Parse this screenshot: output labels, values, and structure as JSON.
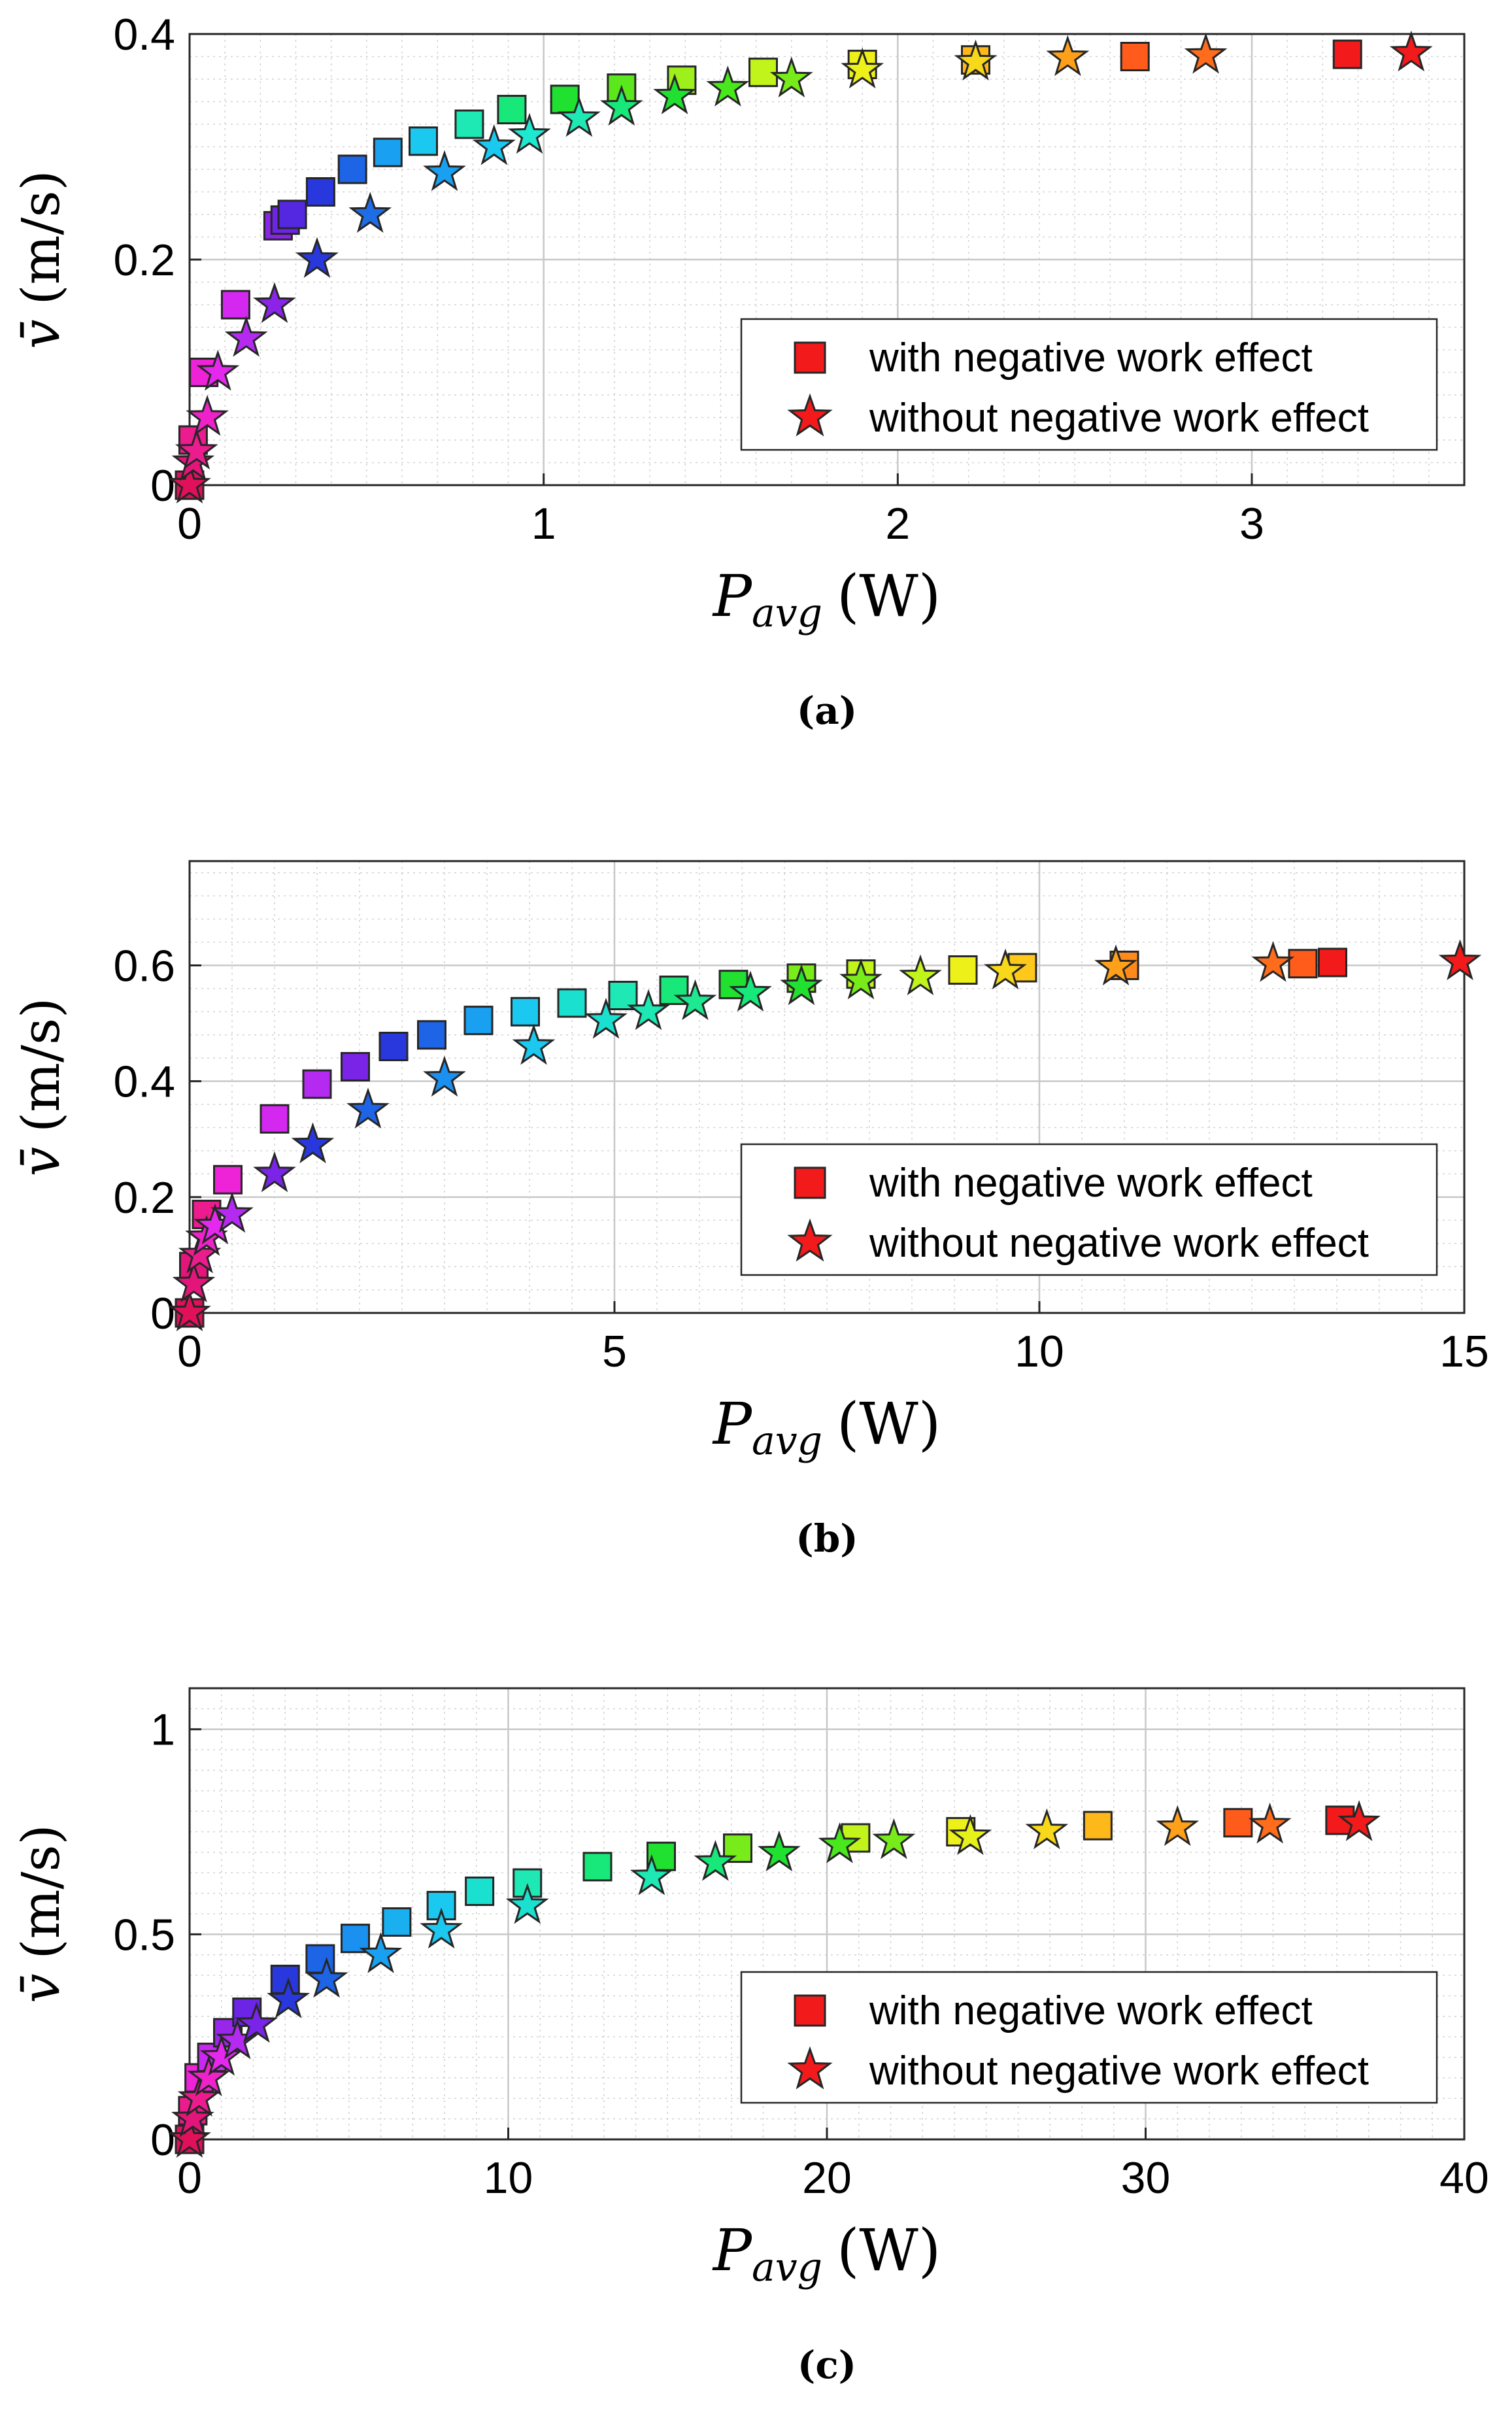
{
  "chart_data": [
    {
      "type": "scatter",
      "panel_label": "(a)",
      "xlabel_main": "P",
      "xlabel_sub": "avg",
      "xlabel_unit": "(W)",
      "ylabel_symbol": "v̄",
      "ylabel_unit": "(m/s)",
      "xlim": [
        0,
        3.6
      ],
      "ylim": [
        0,
        0.4
      ],
      "xticks": [
        0,
        1,
        2,
        3
      ],
      "xtick_labels": [
        "0",
        "1",
        "2",
        "3"
      ],
      "yticks": [
        0,
        0.2,
        0.4
      ],
      "ytick_labels": [
        "0",
        "0.2",
        "0.4"
      ],
      "minor_x": 0.1,
      "minor_y": 0.02,
      "grid": true,
      "legend": {
        "position": "center-right",
        "entries": [
          "with negative work effect",
          "without negative work effect"
        ]
      },
      "series": [
        {
          "name": "with negative work effect",
          "marker": "square",
          "x": [
            0.0,
            0.01,
            0.04,
            0.13,
            0.25,
            0.27,
            0.29,
            0.37,
            0.46,
            0.56,
            0.66,
            0.79,
            0.91,
            1.06,
            1.22,
            1.39,
            1.62,
            1.9,
            2.22,
            2.67,
            3.27
          ],
          "y": [
            0.0,
            0.04,
            0.1,
            0.16,
            0.23,
            0.235,
            0.24,
            0.26,
            0.28,
            0.295,
            0.305,
            0.32,
            0.333,
            0.342,
            0.352,
            0.359,
            0.366,
            0.373,
            0.377,
            0.38,
            0.382
          ],
          "colors": [
            "#e0105a",
            "#ec1c8e",
            "#ee22d6",
            "#d428f0",
            "#8a24e8",
            "#6c24e6",
            "#5428e0",
            "#2838dc",
            "#1e64e6",
            "#1aa0f0",
            "#1ac8f0",
            "#1ee8b4",
            "#18e87a",
            "#20e030",
            "#5ae81c",
            "#9ef01a",
            "#c0f41a",
            "#eef01a",
            "#ffb81a",
            "#ff5c1c",
            "#f21a1a"
          ]
        },
        {
          "name": "without negative work effect",
          "marker": "star",
          "x": [
            0.0,
            0.01,
            0.02,
            0.05,
            0.08,
            0.16,
            0.24,
            0.36,
            0.51,
            0.72,
            0.86,
            0.96,
            1.1,
            1.22,
            1.37,
            1.52,
            1.7,
            1.9,
            2.22,
            2.48,
            2.87,
            3.45
          ],
          "y": [
            0.0,
            0.02,
            0.03,
            0.06,
            0.1,
            0.13,
            0.16,
            0.2,
            0.24,
            0.277,
            0.3,
            0.31,
            0.325,
            0.335,
            0.345,
            0.352,
            0.36,
            0.368,
            0.375,
            0.379,
            0.381,
            0.383
          ],
          "colors": [
            "#e0105a",
            "#e4157a",
            "#ec1c8e",
            "#ee22c8",
            "#e428ee",
            "#b42af0",
            "#8a24e8",
            "#2838dc",
            "#1e6ce6",
            "#1aa0f0",
            "#1ac8f0",
            "#1ee8d0",
            "#1ee8b4",
            "#18e87a",
            "#20e030",
            "#48e81c",
            "#78ec1a",
            "#eef01a",
            "#f8d81a",
            "#ffa01a",
            "#ff6c1c",
            "#f21a1a"
          ]
        }
      ]
    },
    {
      "type": "scatter",
      "panel_label": "(b)",
      "xlabel_main": "P",
      "xlabel_sub": "avg",
      "xlabel_unit": "(W)",
      "ylabel_symbol": "v̄",
      "ylabel_unit": "(m/s)",
      "xlim": [
        0,
        15
      ],
      "ylim": [
        0,
        0.78
      ],
      "xticks": [
        0,
        5,
        10,
        15
      ],
      "xtick_labels": [
        "0",
        "5",
        "10",
        "15"
      ],
      "yticks": [
        0,
        0.2,
        0.4,
        0.6
      ],
      "ytick_labels": [
        "0",
        "0.2",
        "0.4",
        "0.6"
      ],
      "minor_x": 0.5,
      "minor_y": 0.04,
      "grid": true,
      "legend": {
        "position": "center-right",
        "entries": [
          "with negative work effect",
          "without negative work effect"
        ]
      },
      "series": [
        {
          "name": "with negative work effect",
          "marker": "square",
          "x": [
            0.0,
            0.05,
            0.2,
            0.45,
            1.0,
            1.5,
            1.95,
            2.4,
            2.85,
            3.4,
            3.95,
            4.5,
            5.1,
            5.7,
            6.4,
            7.2,
            7.9,
            9.1,
            9.8,
            11.0,
            13.1,
            13.45
          ],
          "y": [
            0.0,
            0.08,
            0.17,
            0.23,
            0.335,
            0.395,
            0.425,
            0.46,
            0.48,
            0.505,
            0.52,
            0.535,
            0.548,
            0.557,
            0.567,
            0.578,
            0.585,
            0.592,
            0.596,
            0.6,
            0.603,
            0.605
          ],
          "colors": [
            "#e0105a",
            "#e4157a",
            "#ec1c8e",
            "#ee22d6",
            "#d428f0",
            "#b42af0",
            "#7a24e8",
            "#2838dc",
            "#1e64e6",
            "#1aa0f0",
            "#1ac8f0",
            "#1ae0d0",
            "#1ee8b4",
            "#18e87a",
            "#20e030",
            "#7aec1a",
            "#c0f41a",
            "#eef01a",
            "#ffc81a",
            "#ff8a1a",
            "#ff5c1c",
            "#f21a1a"
          ]
        },
        {
          "name": "without negative work effect",
          "marker": "star",
          "x": [
            0.0,
            0.05,
            0.12,
            0.2,
            0.3,
            0.5,
            1.0,
            1.45,
            2.1,
            3.0,
            4.05,
            4.9,
            5.4,
            5.95,
            6.6,
            7.2,
            7.9,
            8.6,
            9.6,
            10.9,
            12.75,
            14.95
          ],
          "y": [
            0.0,
            0.05,
            0.1,
            0.13,
            0.15,
            0.17,
            0.24,
            0.29,
            0.35,
            0.405,
            0.46,
            0.505,
            0.52,
            0.537,
            0.552,
            0.563,
            0.573,
            0.58,
            0.59,
            0.597,
            0.603,
            0.606
          ],
          "colors": [
            "#e0105a",
            "#e4157a",
            "#ec1c8e",
            "#ee22c8",
            "#e428ee",
            "#b42af0",
            "#7a24e8",
            "#2838dc",
            "#1e64e6",
            "#1a90f0",
            "#1ac8f0",
            "#1ae0d0",
            "#1ee8b4",
            "#1ee890",
            "#18e87a",
            "#20e030",
            "#78ec1a",
            "#c0f41a",
            "#f8d81a",
            "#ffa01a",
            "#ff6c1c",
            "#f21a1a"
          ]
        }
      ]
    },
    {
      "type": "scatter",
      "panel_label": "(c)",
      "xlabel_main": "P",
      "xlabel_sub": "avg",
      "xlabel_unit": "(W)",
      "ylabel_symbol": "v̄",
      "ylabel_unit": "(m/s)",
      "xlim": [
        0,
        40
      ],
      "ylim": [
        0,
        1.1
      ],
      "xticks": [
        0,
        10,
        20,
        30,
        40
      ],
      "xtick_labels": [
        "0",
        "10",
        "20",
        "30",
        "40"
      ],
      "yticks": [
        0,
        0.5,
        1
      ],
      "ytick_labels": [
        "0",
        "0.5",
        "1"
      ],
      "minor_x": 1,
      "minor_y": 0.05,
      "grid": true,
      "legend": {
        "position": "bottom-right",
        "entries": [
          "with negative work effect",
          "without negative work effect"
        ]
      },
      "series": [
        {
          "name": "with negative work effect",
          "marker": "square",
          "x": [
            0.0,
            0.1,
            0.3,
            0.7,
            1.2,
            1.8,
            3.0,
            4.1,
            5.2,
            6.5,
            7.9,
            9.1,
            10.6,
            12.8,
            14.8,
            17.2,
            20.9,
            24.2,
            28.5,
            32.9,
            36.1
          ],
          "y": [
            0.0,
            0.07,
            0.15,
            0.2,
            0.26,
            0.31,
            0.39,
            0.44,
            0.49,
            0.53,
            0.57,
            0.605,
            0.625,
            0.665,
            0.69,
            0.71,
            0.735,
            0.75,
            0.765,
            0.772,
            0.778
          ],
          "colors": [
            "#e0105a",
            "#ec1c8e",
            "#ee22d6",
            "#c828f0",
            "#9a26ec",
            "#6c24e6",
            "#2838dc",
            "#1e64e6",
            "#1a90f0",
            "#1ab0f0",
            "#1ac8f0",
            "#1ae0d0",
            "#1ee8b4",
            "#18e87a",
            "#20e030",
            "#78ec1a",
            "#c0f41a",
            "#eef01a",
            "#ffb81a",
            "#ff5c1c",
            "#f21a1a"
          ]
        },
        {
          "name": "without negative work effect",
          "marker": "star",
          "x": [
            0.0,
            0.1,
            0.3,
            0.6,
            1.0,
            1.5,
            2.1,
            3.1,
            4.3,
            6.0,
            7.9,
            10.6,
            14.5,
            16.5,
            18.5,
            20.4,
            22.1,
            24.5,
            26.9,
            31.0,
            33.9,
            36.7
          ],
          "y": [
            0.0,
            0.05,
            0.1,
            0.15,
            0.2,
            0.24,
            0.28,
            0.34,
            0.39,
            0.45,
            0.51,
            0.57,
            0.64,
            0.675,
            0.698,
            0.718,
            0.728,
            0.738,
            0.752,
            0.76,
            0.766,
            0.772
          ],
          "colors": [
            "#e0105a",
            "#e4157a",
            "#ec1c8e",
            "#ee22c8",
            "#e428ee",
            "#b42af0",
            "#7a24e8",
            "#2838dc",
            "#1e64e6",
            "#1aa0f0",
            "#1ac8f0",
            "#1ae0d0",
            "#1ee8b4",
            "#18e87a",
            "#20e030",
            "#48e81c",
            "#78ec1a",
            "#e6f01a",
            "#f8d81a",
            "#ffa01a",
            "#ff6c1c",
            "#f21a1a"
          ]
        }
      ]
    }
  ],
  "legend_colors": {
    "marker_fill": "#f21a1a"
  }
}
